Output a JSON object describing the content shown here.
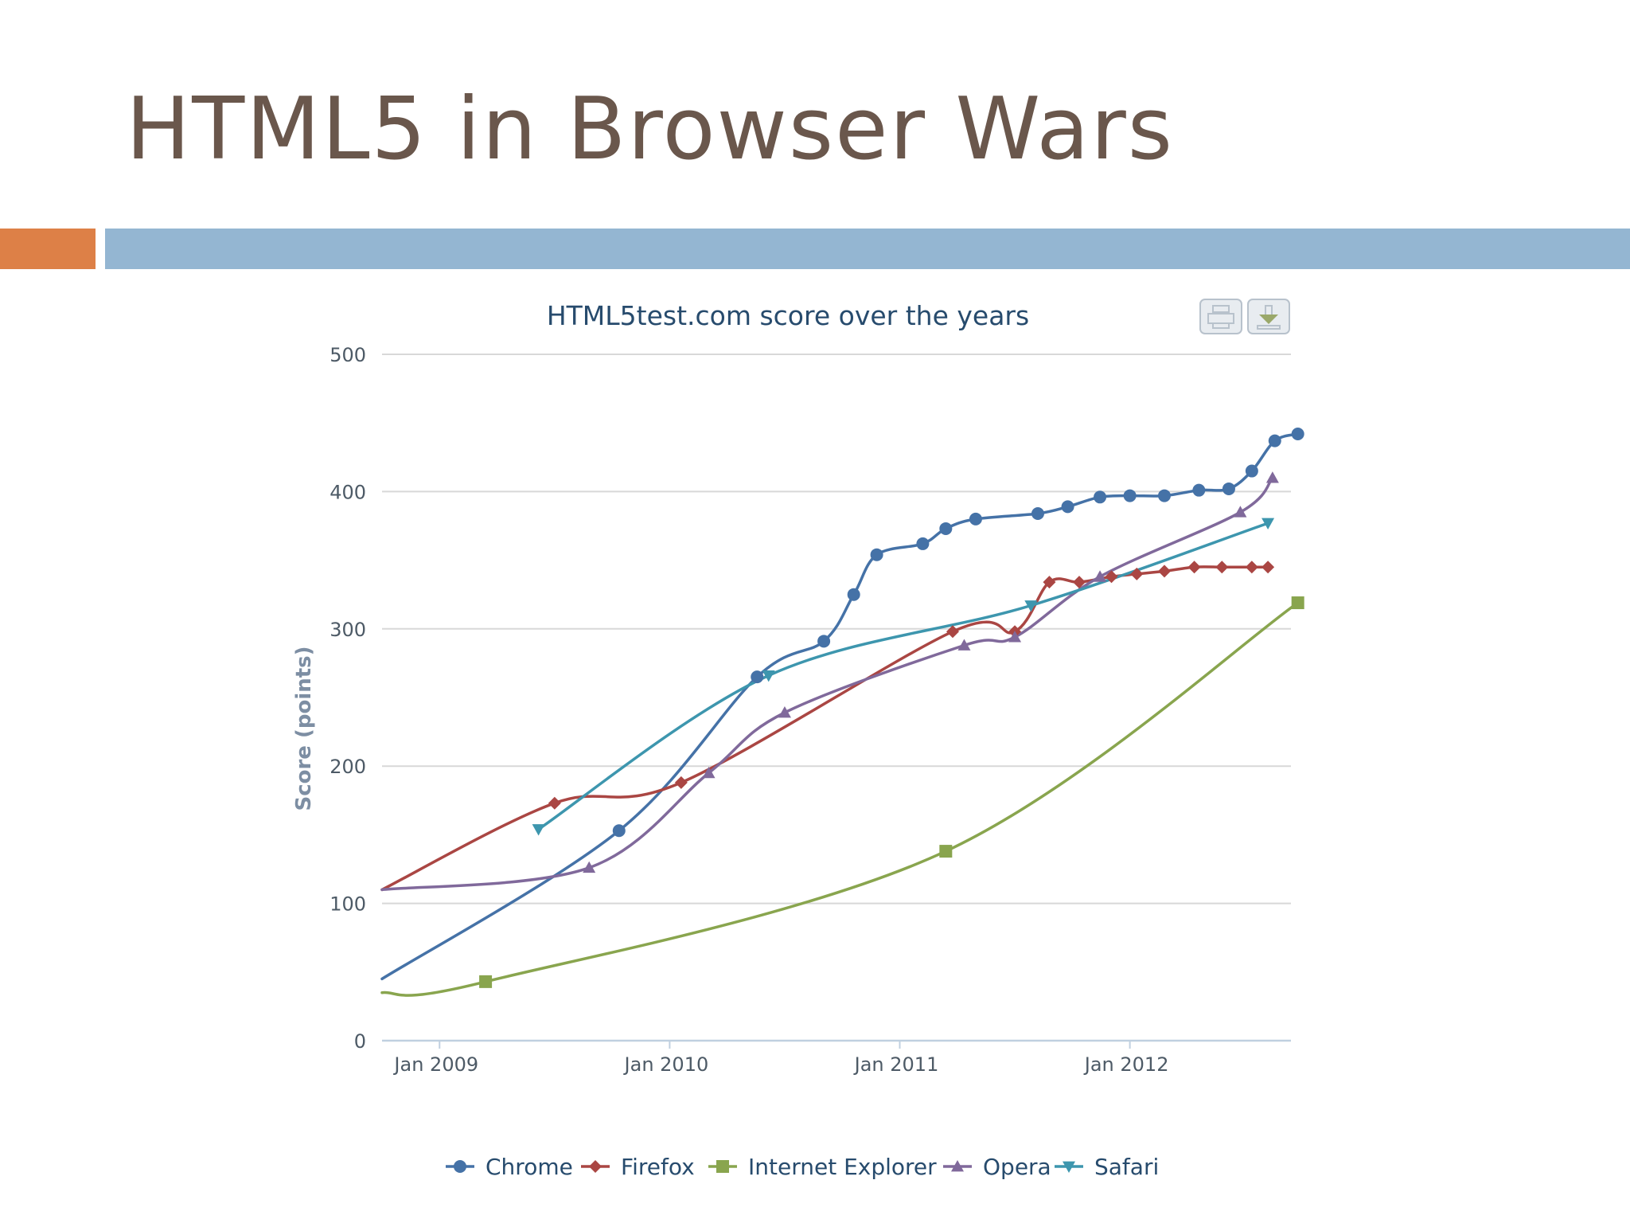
{
  "slide": {
    "title": "HTML5 in Browser Wars",
    "colors": {
      "accent_orange": "#dd8047",
      "accent_blue": "#94b6d2",
      "title_color": "#6a574c"
    }
  },
  "toolbar": {
    "print_icon": "printer-icon",
    "download_icon": "download-icon"
  },
  "chart_data": {
    "type": "line",
    "title": "HTML5test.com score over the years",
    "xlabel": "",
    "ylabel": "Score (points)",
    "ylim": [
      0,
      500
    ],
    "yticks": [
      0,
      100,
      200,
      300,
      400,
      500
    ],
    "xlim": [
      2008.75,
      2012.7
    ],
    "xticks": [
      {
        "value": 2009.0,
        "label": "Jan 2009"
      },
      {
        "value": 2010.0,
        "label": "Jan 2010"
      },
      {
        "value": 2011.0,
        "label": "Jan 2011"
      },
      {
        "value": 2012.0,
        "label": "Jan 2012"
      }
    ],
    "grid": true,
    "legend": "bottom-center",
    "series": [
      {
        "name": "Chrome",
        "color": "#4572a7",
        "marker": "circle",
        "start": [
          2008.75,
          45
        ],
        "points": [
          [
            2009.78,
            153
          ],
          [
            2010.38,
            265
          ],
          [
            2010.67,
            291
          ],
          [
            2010.8,
            325
          ],
          [
            2010.9,
            354
          ],
          [
            2011.1,
            362
          ],
          [
            2011.2,
            373
          ],
          [
            2011.33,
            380
          ],
          [
            2011.6,
            384
          ],
          [
            2011.73,
            389
          ],
          [
            2011.87,
            396
          ],
          [
            2012.0,
            397
          ],
          [
            2012.15,
            397
          ],
          [
            2012.3,
            401
          ],
          [
            2012.43,
            402
          ],
          [
            2012.53,
            415
          ],
          [
            2012.63,
            437
          ],
          [
            2012.73,
            442
          ]
        ]
      },
      {
        "name": "Firefox",
        "color": "#aa4643",
        "marker": "diamond",
        "start": [
          2008.75,
          110
        ],
        "points": [
          [
            2009.5,
            173
          ],
          [
            2010.05,
            188
          ],
          [
            2011.23,
            298
          ],
          [
            2011.5,
            298
          ],
          [
            2011.65,
            334
          ],
          [
            2011.78,
            334
          ],
          [
            2011.92,
            338
          ],
          [
            2012.03,
            340
          ],
          [
            2012.15,
            342
          ],
          [
            2012.28,
            345
          ],
          [
            2012.4,
            345
          ],
          [
            2012.53,
            345
          ],
          [
            2012.6,
            345
          ]
        ]
      },
      {
        "name": "Internet Explorer",
        "color": "#89a54e",
        "marker": "square",
        "start": [
          2008.75,
          35
        ],
        "points": [
          [
            2009.2,
            43
          ],
          [
            2011.2,
            138
          ],
          [
            2012.73,
            319
          ]
        ]
      },
      {
        "name": "Opera",
        "color": "#80699b",
        "marker": "triangle",
        "start": [
          2008.75,
          110
        ],
        "points": [
          [
            2009.65,
            126
          ],
          [
            2010.17,
            195
          ],
          [
            2010.5,
            239
          ],
          [
            2011.28,
            288
          ],
          [
            2011.5,
            294
          ],
          [
            2011.87,
            338
          ],
          [
            2012.48,
            385
          ],
          [
            2012.62,
            410
          ]
        ]
      },
      {
        "name": "Safari",
        "color": "#3d96ae",
        "marker": "triangle-down",
        "start": null,
        "points": [
          [
            2009.43,
            154
          ],
          [
            2010.43,
            266
          ],
          [
            2011.57,
            317
          ],
          [
            2012.6,
            377
          ]
        ]
      }
    ]
  }
}
